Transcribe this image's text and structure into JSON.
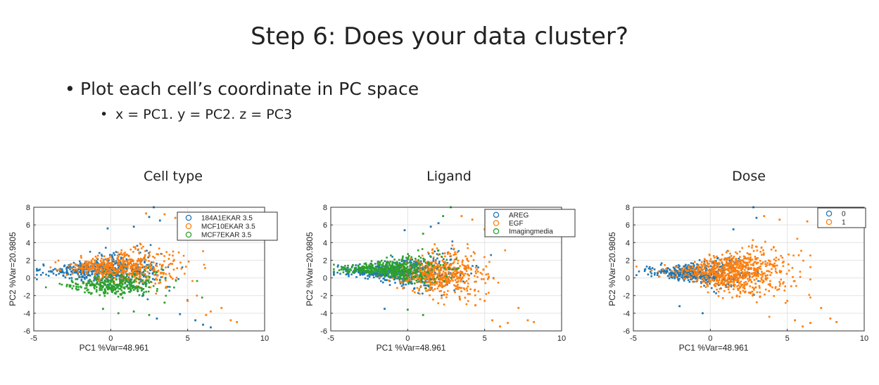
{
  "slide": {
    "title": "Step 6: Does your data cluster?",
    "bullet1": "Plot each cell’s coordinate in PC space",
    "bullet2": "x = PC1. y = PC2. z = PC3"
  },
  "chart_data": [
    {
      "type": "scatter",
      "title": "Cell type",
      "xlabel": "PC1 %Var=48.961",
      "ylabel": "PC2 %Var=20.9805",
      "xlim": [
        -5,
        10
      ],
      "ylim": [
        -6,
        8
      ],
      "xticks": [
        -5,
        0,
        5,
        10
      ],
      "yticks": [
        -6,
        -4,
        -2,
        0,
        2,
        4,
        6,
        8
      ],
      "grid": true,
      "legend_position": "top-right",
      "series": [
        {
          "name": "184A1EKAR 3.5",
          "color": "#1f77b4",
          "cloud": [
            -0.5,
            0.8,
            2.2,
            1.8
          ],
          "outliers": [
            [
              2.8,
              8.0
            ],
            [
              2.5,
              6.9
            ],
            [
              3.2,
              6.5
            ],
            [
              1.5,
              5.8
            ],
            [
              -0.2,
              5.6
            ],
            [
              5.5,
              -4.8
            ],
            [
              6.0,
              -5.3
            ],
            [
              6.5,
              -5.6
            ],
            [
              4.5,
              -4.1
            ],
            [
              3.0,
              -4.6
            ]
          ]
        },
        {
          "name": "MCF10EKAR 3.5",
          "color": "#ff7f0e",
          "cloud": [
            0.8,
            1.2,
            2.0,
            1.7
          ],
          "outliers": [
            [
              3.5,
              7.2
            ],
            [
              4.2,
              6.8
            ],
            [
              2.3,
              7.3
            ],
            [
              5.0,
              5.5
            ],
            [
              6.5,
              -3.8
            ],
            [
              7.2,
              -3.4
            ],
            [
              7.8,
              -4.8
            ],
            [
              5.0,
              -2.6
            ],
            [
              6.2,
              -4.2
            ],
            [
              8.2,
              -5.0
            ]
          ]
        },
        {
          "name": "MCF7EKAR 3.5",
          "color": "#2ca02c",
          "cloud": [
            0.2,
            -0.8,
            1.9,
            1.3
          ],
          "outliers": [
            [
              -0.5,
              -3.5
            ],
            [
              0.5,
              -4.0
            ],
            [
              1.5,
              -3.8
            ],
            [
              2.5,
              -4.2
            ],
            [
              3.5,
              -2.8
            ]
          ]
        }
      ]
    },
    {
      "type": "scatter",
      "title": "Ligand",
      "xlabel": "PC1 %Var=48.961",
      "ylabel": "PC2 %Var=20.9805",
      "xlim": [
        -5,
        10
      ],
      "ylim": [
        -6,
        8
      ],
      "xticks": [
        -5,
        0,
        5,
        10
      ],
      "yticks": [
        -6,
        -4,
        -2,
        0,
        2,
        4,
        6,
        8
      ],
      "grid": true,
      "legend_position": "top-right",
      "series": [
        {
          "name": "AREG",
          "color": "#1f77b4",
          "cloud": [
            -0.5,
            0.7,
            2.1,
            1.7
          ],
          "outliers": [
            [
              1.5,
              5.8
            ],
            [
              -0.2,
              5.4
            ],
            [
              2.0,
              6.2
            ],
            [
              -1.5,
              -3.5
            ]
          ]
        },
        {
          "name": "EGF",
          "color": "#ff7f0e",
          "cloud": [
            2.3,
            0.4,
            1.6,
            1.9
          ],
          "outliers": [
            [
              3.5,
              7.0
            ],
            [
              4.2,
              6.6
            ],
            [
              5.0,
              5.5
            ],
            [
              6.0,
              -5.5
            ],
            [
              6.5,
              -5.1
            ],
            [
              7.2,
              -3.4
            ],
            [
              7.8,
              -4.8
            ],
            [
              8.2,
              -5.0
            ],
            [
              5.5,
              -4.8
            ],
            [
              5.0,
              -2.6
            ]
          ]
        },
        {
          "name": "Imagingmedia",
          "color": "#2ca02c",
          "cloud": [
            -1.0,
            1.0,
            1.8,
            1.6
          ],
          "outliers": [
            [
              2.8,
              8.0
            ],
            [
              2.3,
              7.0
            ],
            [
              1.0,
              5.0
            ],
            [
              0.0,
              -3.6
            ],
            [
              1.0,
              -4.2
            ]
          ]
        }
      ]
    },
    {
      "type": "scatter",
      "title": "Dose",
      "xlabel": "PC1 %Var=48.961",
      "ylabel": "PC2 %Var=20.9805",
      "xlim": [
        -5,
        10
      ],
      "ylim": [
        -6,
        8
      ],
      "xticks": [
        -5,
        0,
        5,
        10
      ],
      "yticks": [
        -6,
        -4,
        -2,
        0,
        2,
        4,
        6,
        8
      ],
      "grid": true,
      "legend_position": "top-right",
      "series": [
        {
          "name": "0",
          "color": "#1f77b4",
          "cloud": [
            -1.0,
            0.6,
            1.8,
            1.6
          ],
          "outliers": [
            [
              2.8,
              8.0
            ],
            [
              3.0,
              6.8
            ],
            [
              1.5,
              5.5
            ],
            [
              -2.0,
              -3.2
            ],
            [
              -0.5,
              -4.0
            ]
          ]
        },
        {
          "name": "1",
          "color": "#ff7f0e",
          "cloud": [
            1.5,
            0.6,
            2.1,
            1.9
          ],
          "outliers": [
            [
              4.5,
              6.6
            ],
            [
              6.3,
              6.4
            ],
            [
              6.0,
              -5.5
            ],
            [
              6.5,
              -5.1
            ],
            [
              7.2,
              -3.4
            ],
            [
              7.8,
              -4.6
            ],
            [
              8.2,
              -5.0
            ],
            [
              5.5,
              -4.8
            ],
            [
              3.5,
              7.0
            ],
            [
              5.0,
              -2.6
            ]
          ]
        }
      ]
    }
  ]
}
